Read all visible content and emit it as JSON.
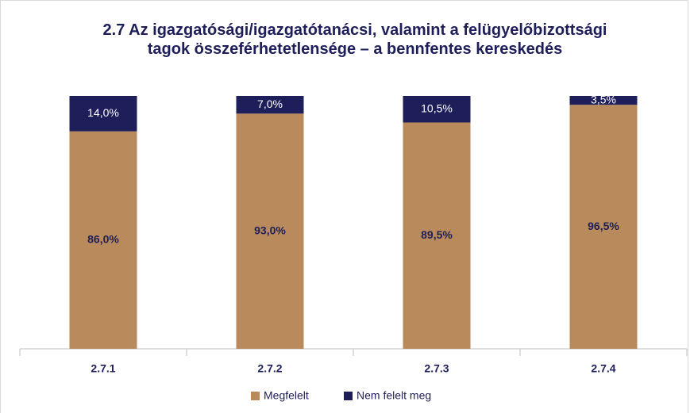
{
  "chart_data": {
    "type": "stacked_bar",
    "title": "2.7 Az igazgatósági/igazgatótanácsi, valamint a felügyelőbizottsági tagok összeférhetetlensége – a bennfentes kereskedés",
    "categories": [
      "2.7.1",
      "2.7.2",
      "2.7.3",
      "2.7.4"
    ],
    "series": [
      {
        "name": "Megfelelt",
        "color": "#b98a5b",
        "values": [
          86.0,
          93.0,
          89.5,
          96.5
        ],
        "value_labels": [
          "86,0%",
          "93,0%",
          "89,5%",
          "96,5%"
        ]
      },
      {
        "name": "Nem felelt meg",
        "color": "#1e1f5a",
        "values": [
          14.0,
          7.0,
          10.5,
          3.5
        ],
        "value_labels": [
          "14,0%",
          "7,0%",
          "10,5%",
          "3,5%"
        ]
      }
    ],
    "ylim": [
      0,
      100
    ],
    "legend": "bottom"
  }
}
